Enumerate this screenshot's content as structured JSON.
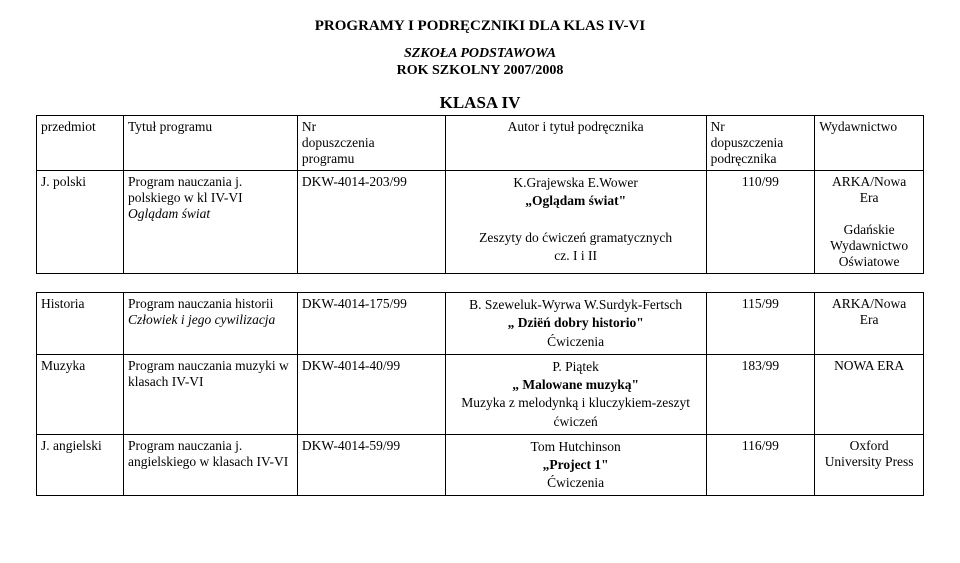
{
  "document": {
    "title": "PROGRAMY  I  PODRĘCZNIKI  DLA  KLAS  IV-VI",
    "subtitle_line1": "SZKOŁA PODSTAWOWA",
    "subtitle_line2": "ROK SZKOLNY 2007/2008",
    "class_header": "KLASA IV"
  },
  "table": {
    "headers": {
      "subject": "przedmiot",
      "program_title": "Tytuł programu",
      "nr_program_line1": "Nr",
      "nr_program_line2": "dopuszczenia",
      "nr_program_line3": "programu",
      "author_title": "Autor i tytuł podręcznika",
      "nr_book_line1": "Nr",
      "nr_book_line2": "dopuszczenia",
      "nr_book_line3": "podręcznika",
      "publisher": "Wydawnictwo"
    },
    "rows": [
      {
        "subject": "J. polski",
        "program_plain": "Program nauczania j. polskiego w kl IV-VI",
        "program_italic": "Oglądam świat",
        "nr_program": "DKW-4014-203/99",
        "author_line1": "K.Grajewska E.Wower",
        "book_line": "„Oglądam świat\"",
        "extra_line1": "Zeszyty do ćwiczeń gramatycznych",
        "extra_line2": "cz. I i II",
        "nr_book": "110/99",
        "publisher_line1": "ARKA/Nowa",
        "publisher_line2": "Era",
        "publisher_extra1": "Gdańskie",
        "publisher_extra2": "Wydawnictwo",
        "publisher_extra3": "Oświatowe"
      },
      {
        "subject": "Historia",
        "program_plain": "Program nauczania historii ",
        "program_italic": "Człowiek i jego cywilizacja",
        "nr_program": "DKW-4014-175/99",
        "author_line1": "B. Szeweluk-Wyrwa W.Surdyk-Fertsch",
        "book_line": "„ Dziëń dobry historio\"",
        "extra_line1": "Ćwiczenia",
        "nr_book": "115/99",
        "publisher_line1": "ARKA/Nowa",
        "publisher_line2": "Era"
      },
      {
        "subject": "Muzyka",
        "program_plain": "Program nauczania muzyki w klasach IV-VI",
        "nr_program": "DKW-4014-40/99",
        "author_line1": "P. Piątek",
        "book_line": "„ Malowane muzyką\"",
        "extra_line1": "Muzyka z melodynką i kluczykiem-zeszyt",
        "extra_line2": "ćwiczeń",
        "nr_book": "183/99",
        "publisher_line1": "NOWA ERA"
      },
      {
        "subject": "J. angielski",
        "program_plain": "Program nauczania j. angielskiego w klasach IV-VI",
        "nr_program": "DKW-4014-59/99",
        "author_line1": "Tom Hutchinson",
        "book_line": "„Project 1\"",
        "extra_line1": "Ćwiczenia",
        "nr_book": "116/99",
        "publisher_line1": "Oxford",
        "publisher_line2": "University Press"
      }
    ]
  }
}
